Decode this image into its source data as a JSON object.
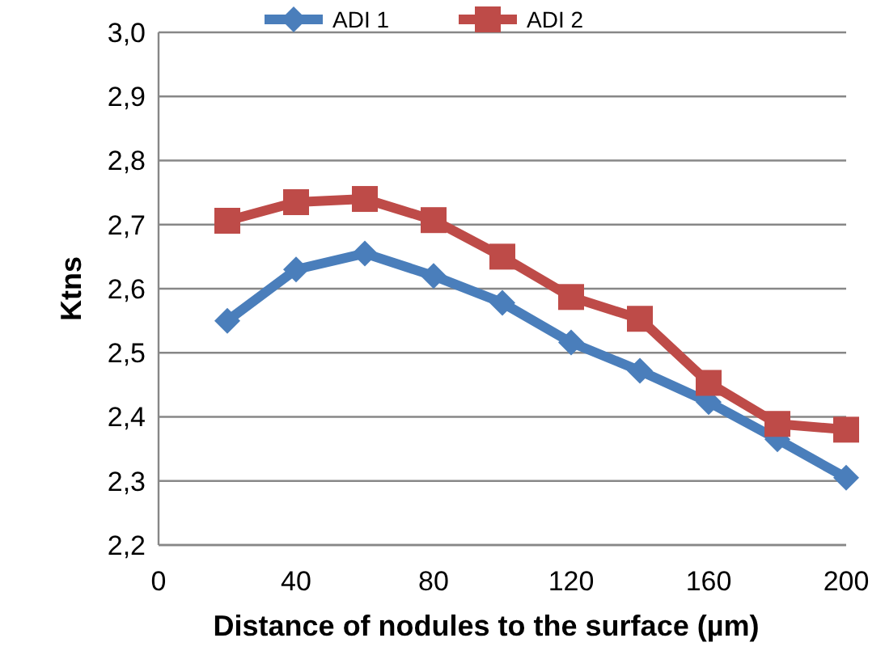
{
  "chart_data": {
    "type": "line",
    "xlabel": "Distance of nodules to the surface (µm)",
    "ylabel": "Ktns",
    "x": [
      20,
      40,
      60,
      80,
      100,
      120,
      140,
      160,
      180,
      200
    ],
    "series": [
      {
        "name": "ADI 1",
        "color": "#4a7ebb",
        "marker": "diamond",
        "values": [
          2.55,
          2.63,
          2.655,
          2.62,
          2.578,
          2.516,
          2.472,
          2.423,
          2.365,
          2.305
        ]
      },
      {
        "name": "ADI 2",
        "color": "#be4b48",
        "marker": "square",
        "values": [
          2.706,
          2.735,
          2.74,
          2.707,
          2.65,
          2.587,
          2.553,
          2.453,
          2.389,
          2.38
        ]
      }
    ],
    "xlim": [
      0,
      200
    ],
    "xticks": [
      0,
      40,
      80,
      120,
      160,
      200
    ],
    "ylim": [
      2.2,
      3.0
    ],
    "yticks": [
      {
        "value": 2.2,
        "label": "2,2"
      },
      {
        "value": 2.3,
        "label": "2,3"
      },
      {
        "value": 2.4,
        "label": "2,4"
      },
      {
        "value": 2.5,
        "label": "2,5"
      },
      {
        "value": 2.6,
        "label": "2,6"
      },
      {
        "value": 2.7,
        "label": "2,7"
      },
      {
        "value": 2.8,
        "label": "2,8"
      },
      {
        "value": 2.9,
        "label": "2,9"
      },
      {
        "value": 3.0,
        "label": "3,0"
      }
    ],
    "grid": "y",
    "legend": "top",
    "line_style": "solid"
  }
}
